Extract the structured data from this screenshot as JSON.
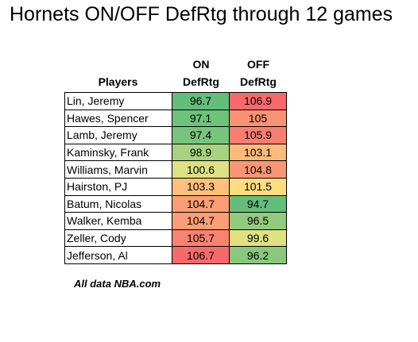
{
  "title": "Hornets ON/OFF DefRtg through 12 games",
  "footnote": "All data NBA.com",
  "chart_data": {
    "type": "table",
    "title": "Hornets ON/OFF DefRtg through 12 games",
    "columns": [
      "Players",
      "ON DefRtg",
      "OFF DefRtg"
    ],
    "header_lines": {
      "players": "Players",
      "on_line1": "ON",
      "on_line2": "DefRtg",
      "off_line1": "OFF",
      "off_line2": "DefRtg"
    },
    "rows": [
      {
        "player": "Lin, Jeremy",
        "on": "96.7",
        "off": "106.9"
      },
      {
        "player": "Hawes, Spencer",
        "on": "97.1",
        "off": "105"
      },
      {
        "player": "Lamb, Jeremy",
        "on": "97.4",
        "off": "105.9"
      },
      {
        "player": "Kaminsky, Frank",
        "on": "98.9",
        "off": "103.1"
      },
      {
        "player": "Williams, Marvin",
        "on": "100.6",
        "off": "104.8"
      },
      {
        "player": "Hairston, PJ",
        "on": "103.3",
        "off": "101.5"
      },
      {
        "player": "Batum, Nicolas",
        "on": "104.7",
        "off": "94.7"
      },
      {
        "player": "Walker, Kemba",
        "on": "104.7",
        "off": "96.5"
      },
      {
        "player": "Zeller, Cody",
        "on": "105.7",
        "off": "99.6"
      },
      {
        "player": "Jefferson, Al",
        "on": "106.7",
        "off": "96.2"
      }
    ],
    "color_scale": {
      "good_low": "#63be7b",
      "mid": "#ffeb84",
      "bad_high": "#f8696b"
    }
  }
}
